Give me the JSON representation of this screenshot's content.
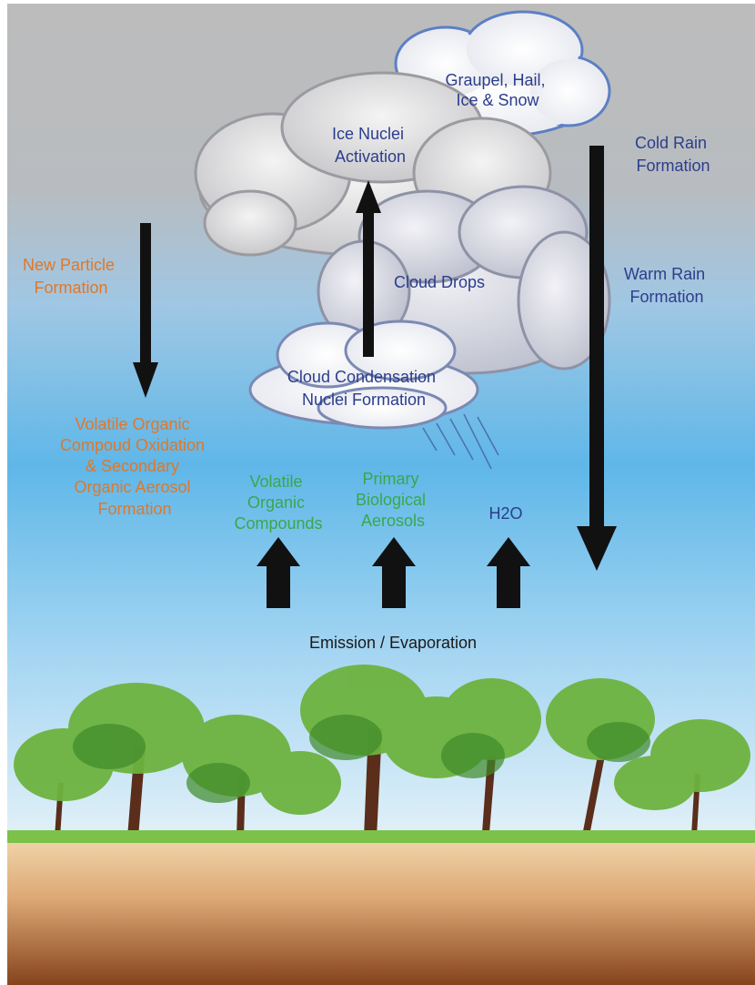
{
  "graupel_label": [
    "Graupel, Hail,",
    "Ice & Snow"
  ],
  "ice_nuclei_label": [
    "Ice Nuclei",
    "Activation"
  ],
  "cold_rain_label": [
    "Cold Rain",
    "Formation"
  ],
  "new_particle_label": [
    "New Particle",
    "Formation"
  ],
  "cloud_drops_label": [
    "Cloud Drops"
  ],
  "warm_rain_label": [
    "Warm Rain",
    "Formation"
  ],
  "ccn_label": [
    "Cloud Condensation",
    "Nuclei Formation"
  ],
  "voc_oxidation_label": [
    "Volatile Organic",
    "Compoud Oxidation",
    "& Secondary",
    "Organic Aerosol",
    "Formation"
  ],
  "voc_label": [
    "Volatile",
    "Organic",
    "Compounds"
  ],
  "bio_aerosol_label": [
    "Primary",
    "Biological",
    "Aerosols"
  ],
  "h2o_label": [
    "H2O"
  ],
  "emission_label": [
    "Emission / Evaporation"
  ]
}
